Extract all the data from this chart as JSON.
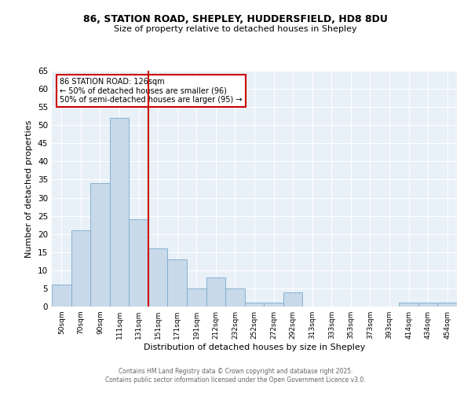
{
  "title_line1": "86, STATION ROAD, SHEPLEY, HUDDERSFIELD, HD8 8DU",
  "title_line2": "Size of property relative to detached houses in Shepley",
  "xlabel": "Distribution of detached houses by size in Shepley",
  "ylabel": "Number of detached properties",
  "bar_color": "#c8d9ea",
  "bar_edge_color": "#7aaaca",
  "bg_color": "#e8f0f8",
  "grid_color": "white",
  "categories": [
    "50sqm",
    "70sqm",
    "90sqm",
    "111sqm",
    "131sqm",
    "151sqm",
    "171sqm",
    "191sqm",
    "212sqm",
    "232sqm",
    "252sqm",
    "272sqm",
    "292sqm",
    "313sqm",
    "333sqm",
    "353sqm",
    "373sqm",
    "393sqm",
    "414sqm",
    "434sqm",
    "454sqm"
  ],
  "values": [
    6,
    21,
    34,
    52,
    24,
    16,
    13,
    5,
    8,
    5,
    1,
    1,
    4,
    0,
    0,
    0,
    0,
    0,
    1,
    1,
    1
  ],
  "vline_index": 4,
  "vline_color": "#cc0000",
  "annotation_text": "86 STATION ROAD: 126sqm\n← 50% of detached houses are smaller (96)\n50% of semi-detached houses are larger (95) →",
  "annotation_box_color": "#cc0000",
  "ylim": [
    0,
    65
  ],
  "yticks": [
    0,
    5,
    10,
    15,
    20,
    25,
    30,
    35,
    40,
    45,
    50,
    55,
    60,
    65
  ],
  "footer_line1": "Contains HM Land Registry data © Crown copyright and database right 2025.",
  "footer_line2": "Contains public sector information licensed under the Open Government Licence v3.0."
}
